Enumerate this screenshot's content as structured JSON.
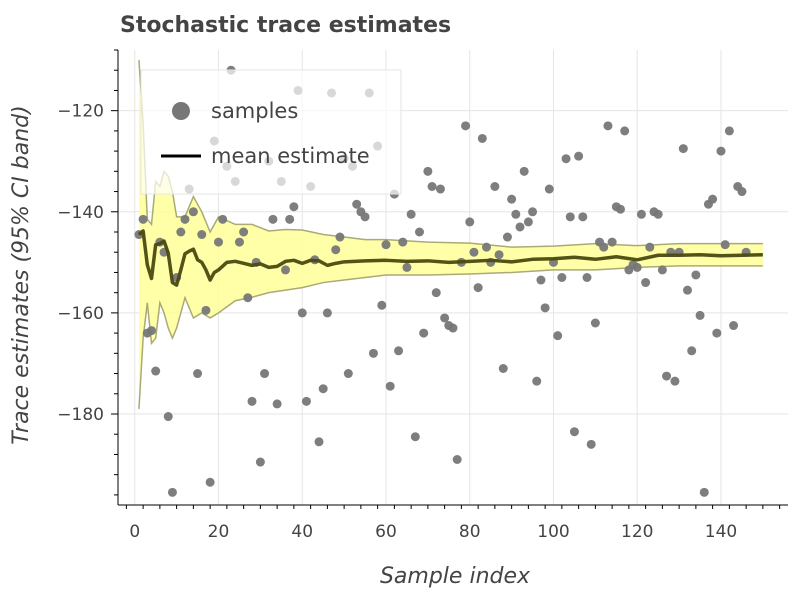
{
  "chart_data": {
    "type": "scatter",
    "title": "Stochastic trace estimates",
    "xlabel": "Sample index",
    "ylabel": "Trace estimates (95% CI band)",
    "xlim": [
      -4,
      156
    ],
    "ylim": [
      -198,
      -108
    ],
    "x_ticks": [
      0,
      20,
      40,
      60,
      80,
      100,
      120,
      140
    ],
    "x_tick_labels": [
      "0",
      "20",
      "40",
      "60",
      "80",
      "100",
      "120",
      "140"
    ],
    "y_ticks": [
      -120,
      -140,
      -160,
      -180
    ],
    "y_tick_labels": [
      "−120",
      "−140",
      "−160",
      "−180"
    ],
    "grid": true,
    "legend_position": "top-left",
    "legend": [
      {
        "label": "samples",
        "glyph": "circle"
      },
      {
        "label": "mean estimate",
        "glyph": "line"
      }
    ],
    "colors": {
      "samples": "#777777",
      "mean": "#4a4a10",
      "band_fill": "#ffff99",
      "band_edge": "#aaaa77"
    },
    "series": [
      {
        "name": "samples",
        "kind": "scatter",
        "points": [
          [
            1,
            -144.5
          ],
          [
            2,
            -141.5
          ],
          [
            3,
            -164
          ],
          [
            4,
            -163.5
          ],
          [
            5,
            -171.5
          ],
          [
            6,
            -146
          ],
          [
            7,
            -148
          ],
          [
            8,
            -180.5
          ],
          [
            9,
            -195.5
          ],
          [
            10,
            -153
          ],
          [
            11,
            -144
          ],
          [
            12,
            -141.5
          ],
          [
            13,
            -135.5
          ],
          [
            14,
            -140
          ],
          [
            15,
            -172
          ],
          [
            16,
            -144.5
          ],
          [
            17,
            -159.5
          ],
          [
            18,
            -193.5
          ],
          [
            19,
            -126
          ],
          [
            20,
            -146
          ],
          [
            21,
            -141.5
          ],
          [
            22,
            -131
          ],
          [
            23,
            -112
          ],
          [
            24,
            -134
          ],
          [
            25,
            -146
          ],
          [
            26,
            -144
          ],
          [
            27,
            -157
          ],
          [
            28,
            -177.5
          ],
          [
            29,
            -150
          ],
          [
            30,
            -189.5
          ],
          [
            31,
            -172
          ],
          [
            32,
            -130
          ],
          [
            33,
            -141.5
          ],
          [
            34,
            -178
          ],
          [
            35,
            -134
          ],
          [
            36,
            -151.5
          ],
          [
            37,
            -141.5
          ],
          [
            38,
            -139
          ],
          [
            39,
            -116
          ],
          [
            40,
            -160
          ],
          [
            41,
            -177.5
          ],
          [
            42,
            -135
          ],
          [
            43,
            -149.5
          ],
          [
            44,
            -185.5
          ],
          [
            45,
            -175
          ],
          [
            46,
            -160
          ],
          [
            47,
            -116.5
          ],
          [
            48,
            -147.5
          ],
          [
            49,
            -145
          ],
          [
            50,
            -129.5
          ],
          [
            51,
            -172
          ],
          [
            52,
            -131
          ],
          [
            53,
            -138.5
          ],
          [
            54,
            -140
          ],
          [
            55,
            -141
          ],
          [
            56,
            -116.5
          ],
          [
            57,
            -168
          ],
          [
            58,
            -127
          ],
          [
            59,
            -158.5
          ],
          [
            60,
            -146.5
          ],
          [
            61,
            -174.5
          ],
          [
            62,
            -136.5
          ],
          [
            63,
            -167.5
          ],
          [
            64,
            -146
          ],
          [
            65,
            -151
          ],
          [
            66,
            -140.5
          ],
          [
            67,
            -184.5
          ],
          [
            68,
            -144
          ],
          [
            69,
            -164
          ],
          [
            70,
            -132
          ],
          [
            71,
            -135
          ],
          [
            72,
            -156
          ],
          [
            73,
            -135.5
          ],
          [
            74,
            -161
          ],
          [
            75,
            -162.5
          ],
          [
            76,
            -163
          ],
          [
            77,
            -189
          ],
          [
            78,
            -150
          ],
          [
            79,
            -123
          ],
          [
            80,
            -142
          ],
          [
            81,
            -148
          ],
          [
            82,
            -155
          ],
          [
            83,
            -125.5
          ],
          [
            84,
            -147
          ],
          [
            85,
            -150
          ],
          [
            86,
            -135
          ],
          [
            87,
            -148.5
          ],
          [
            88,
            -171
          ],
          [
            89,
            -145
          ],
          [
            90,
            -137.5
          ],
          [
            91,
            -140.5
          ],
          [
            92,
            -143
          ],
          [
            93,
            -132
          ],
          [
            94,
            -142
          ],
          [
            95,
            -140
          ],
          [
            96,
            -173.5
          ],
          [
            97,
            -153.5
          ],
          [
            98,
            -159
          ],
          [
            99,
            -135.5
          ],
          [
            100,
            -150
          ],
          [
            101,
            -164.5
          ],
          [
            102,
            -153
          ],
          [
            103,
            -129.5
          ],
          [
            104,
            -141
          ],
          [
            105,
            -183.5
          ],
          [
            106,
            -129
          ],
          [
            107,
            -141
          ],
          [
            108,
            -153
          ],
          [
            109,
            -186
          ],
          [
            110,
            -162
          ],
          [
            111,
            -146
          ],
          [
            112,
            -147
          ],
          [
            113,
            -123
          ],
          [
            114,
            -146
          ],
          [
            115,
            -139
          ],
          [
            116,
            -139.5
          ],
          [
            117,
            -124
          ],
          [
            118,
            -151.5
          ],
          [
            119,
            -150.5
          ],
          [
            120,
            -151
          ],
          [
            121,
            -140.5
          ],
          [
            122,
            -154
          ],
          [
            123,
            -147
          ],
          [
            124,
            -140
          ],
          [
            125,
            -140.5
          ],
          [
            126,
            -151.5
          ],
          [
            127,
            -172.5
          ],
          [
            128,
            -148
          ],
          [
            129,
            -173.5
          ],
          [
            130,
            -148
          ],
          [
            131,
            -127.5
          ],
          [
            132,
            -155.5
          ],
          [
            133,
            -167.5
          ],
          [
            134,
            -152.5
          ],
          [
            135,
            -160.5
          ],
          [
            136,
            -195.5
          ],
          [
            137,
            -138.5
          ],
          [
            138,
            -137.5
          ],
          [
            139,
            -164
          ],
          [
            140,
            -128
          ],
          [
            141,
            -146.5
          ],
          [
            142,
            -124
          ],
          [
            143,
            -162.5
          ],
          [
            144,
            -135
          ],
          [
            145,
            -136
          ],
          [
            146,
            -148
          ]
        ]
      },
      {
        "name": "mean estimate",
        "kind": "line",
        "x": [
          1,
          2,
          3,
          4,
          5,
          6,
          7,
          8,
          9,
          10,
          11,
          12,
          13,
          14,
          15,
          16,
          17,
          18,
          19,
          20,
          22,
          24,
          26,
          28,
          30,
          32,
          34,
          36,
          38,
          40,
          42,
          44,
          46,
          48,
          50,
          55,
          60,
          65,
          70,
          75,
          80,
          85,
          90,
          95,
          100,
          105,
          110,
          115,
          120,
          125,
          130,
          135,
          140,
          145,
          150
        ],
        "y": [
          -144.5,
          -143.8,
          -150.5,
          -153.2,
          -146.5,
          -146.3,
          -145.8,
          -148.2,
          -154,
          -154.5,
          -151.5,
          -148.3,
          -147.8,
          -147.4,
          -149.5,
          -150,
          -151.5,
          -153.5,
          -152,
          -151.5,
          -150,
          -149.8,
          -150.2,
          -150.6,
          -150.3,
          -151,
          -150.8,
          -149.8,
          -149.6,
          -150.2,
          -149.6,
          -149.7,
          -150.6,
          -150.2,
          -149.9,
          -149.7,
          -149.6,
          -149.8,
          -149.7,
          -150,
          -149.8,
          -149.6,
          -149.9,
          -149.4,
          -149.3,
          -149,
          -149.4,
          -148.9,
          -149.5,
          -148.6,
          -148.6,
          -148.5,
          -148.7,
          -148.6,
          -148.5
        ]
      },
      {
        "name": "95% CI band",
        "kind": "band",
        "x": [
          1,
          2,
          3,
          4,
          5,
          6,
          7,
          8,
          9,
          10,
          12,
          14,
          16,
          18,
          20,
          24,
          28,
          32,
          36,
          40,
          45,
          50,
          55,
          60,
          70,
          80,
          90,
          100,
          110,
          120,
          130,
          140,
          150
        ],
        "lower": [
          -179,
          -165,
          -158,
          -166,
          -165,
          -158,
          -160,
          -163,
          -165,
          -163,
          -157,
          -161,
          -160,
          -161,
          -160,
          -157.6,
          -156.9,
          -156,
          -155.5,
          -155,
          -154,
          -153.5,
          -153,
          -152.5,
          -152.5,
          -152.3,
          -152,
          -151.5,
          -151.5,
          -151,
          -150.7,
          -150.7,
          -150.7
        ],
        "upper": [
          -110,
          -122.5,
          -141.5,
          -142.5,
          -134,
          -135,
          -132,
          -133,
          -136,
          -141,
          -141,
          -137,
          -140,
          -144,
          -141,
          -142.5,
          -142.5,
          -143.8,
          -143.5,
          -143.6,
          -144.5,
          -145,
          -145.5,
          -145.5,
          -146,
          -146.2,
          -147,
          -146.8,
          -146.3,
          -146.7,
          -146.3,
          -146.3,
          -146.3
        ]
      }
    ]
  }
}
